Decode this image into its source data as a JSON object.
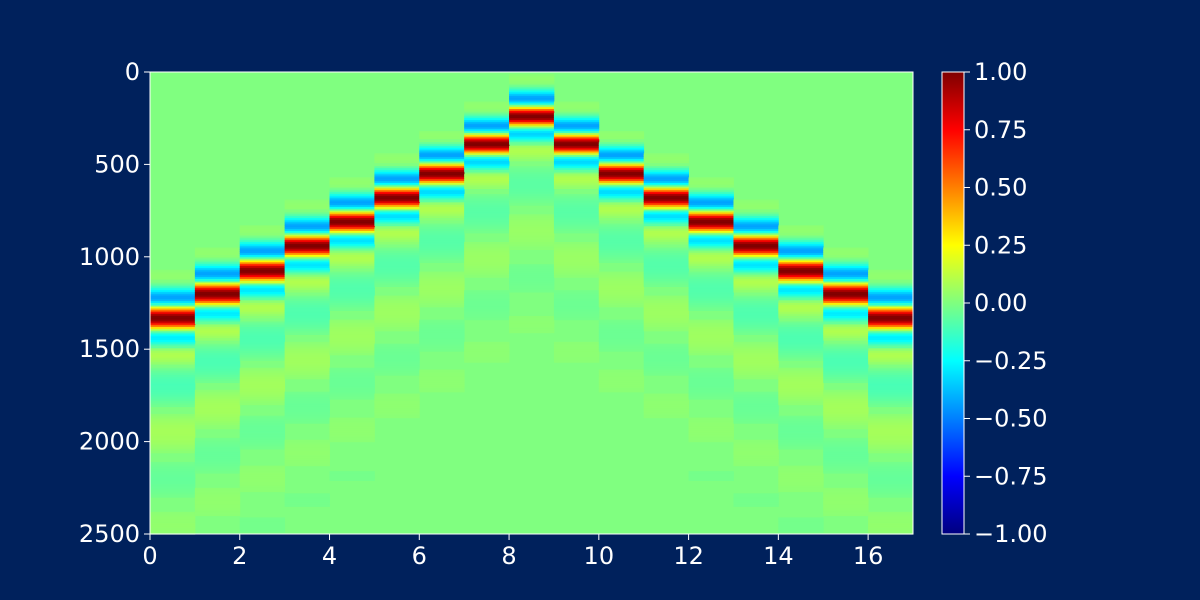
{
  "chart_data": {
    "type": "heatmap",
    "title": "",
    "xlabel": "",
    "ylabel": "",
    "colormap": "jet",
    "background": "#00215c",
    "xlim": [
      0,
      17
    ],
    "ylim": [
      2500,
      0
    ],
    "x_ticks": [
      "0",
      "2",
      "4",
      "6",
      "8",
      "10",
      "12",
      "14",
      "16"
    ],
    "y_ticks": [
      "0",
      "500",
      "1000",
      "1500",
      "2000",
      "2500"
    ],
    "colorbar": {
      "range": [
        -1.0,
        1.0
      ],
      "ticks": [
        "1.00",
        "0.75",
        "0.50",
        "0.25",
        "0.00",
        "−0.25",
        "−0.50",
        "−0.75",
        "−1.00"
      ]
    },
    "columns": 17,
    "samples": 2500,
    "traces": {
      "description_of_values": "per-column arrival sample (center of red peak) of the wavelet",
      "center_sample": [
        1330,
        1200,
        1075,
        940,
        810,
        680,
        550,
        390,
        240,
        390,
        550,
        680,
        810,
        940,
        1075,
        1200,
        1330
      ]
    }
  }
}
